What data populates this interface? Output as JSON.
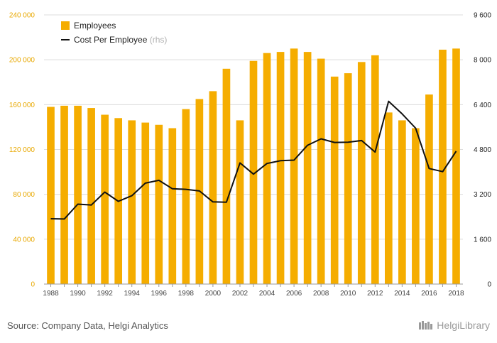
{
  "chart_data": {
    "type": "bar",
    "categories": [
      "1988",
      "1989",
      "1990",
      "1991",
      "1992",
      "1993",
      "1994",
      "1995",
      "1996",
      "1997",
      "1998",
      "1999",
      "2000",
      "2001",
      "2002",
      "2003",
      "2004",
      "2005",
      "2006",
      "2007",
      "2008",
      "2009",
      "2010",
      "2011",
      "2012",
      "2013",
      "2014",
      "2015",
      "2016",
      "2017",
      "2018"
    ],
    "x_tick_labels": [
      "1988",
      "1990",
      "1992",
      "1994",
      "1996",
      "1998",
      "2000",
      "2002",
      "2004",
      "2006",
      "2008",
      "2010",
      "2012",
      "2014",
      "2016",
      "2018"
    ],
    "series": [
      {
        "name": "Employees",
        "type": "bar",
        "axis": "left",
        "color": "#f5ad00",
        "values": [
          158000,
          159000,
          159000,
          157000,
          151000,
          148000,
          146000,
          144000,
          142000,
          139000,
          156000,
          165000,
          172000,
          192000,
          146000,
          199000,
          206000,
          207000,
          210000,
          207000,
          201000,
          185000,
          188000,
          198000,
          204000,
          153000,
          146000,
          139000,
          169000,
          209000,
          210000
        ]
      },
      {
        "name": "Cost Per Employee",
        "type": "line",
        "axis": "right",
        "color": "#111111",
        "values": [
          2330,
          2320,
          2850,
          2820,
          3280,
          2950,
          3150,
          3600,
          3700,
          3400,
          3380,
          3320,
          2930,
          2920,
          4320,
          3920,
          4300,
          4400,
          4420,
          4950,
          5180,
          5050,
          5060,
          5120,
          4710,
          6520,
          6070,
          5560,
          4120,
          4010,
          4740
        ]
      }
    ],
    "legend": {
      "position": "top-left",
      "items": [
        {
          "label": "Employees",
          "note": ""
        },
        {
          "label": "Cost Per Employee",
          "note": "(rhs)"
        }
      ]
    },
    "left_axis": {
      "ylim": [
        0,
        240000
      ],
      "ticks": [
        0,
        40000,
        80000,
        120000,
        160000,
        200000,
        240000
      ],
      "tick_labels": [
        "0",
        "40 000",
        "80 000",
        "120 000",
        "160 000",
        "200 000",
        "240 000"
      ],
      "color": "#e8a800"
    },
    "right_axis": {
      "ylim": [
        0,
        9600
      ],
      "ticks": [
        0,
        1600,
        3200,
        4800,
        6400,
        8000,
        9600
      ],
      "tick_labels": [
        "0",
        "1 600",
        "3 200",
        "4 800",
        "6 400",
        "8 000",
        "9 600"
      ],
      "color": "#222222"
    },
    "grid": true,
    "title": "",
    "xlabel": "",
    "ylabel": ""
  },
  "footer": {
    "source": "Source: Company Data, Helgi Analytics",
    "brand": "HelgiLibrary"
  }
}
